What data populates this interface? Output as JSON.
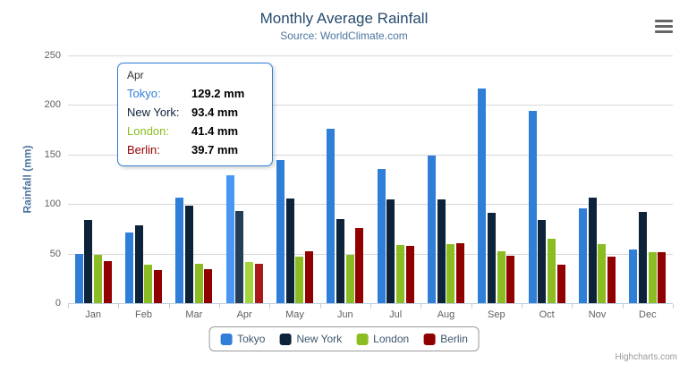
{
  "header": {
    "title": "Monthly Average Rainfall",
    "subtitle": "Source: WorldClimate.com"
  },
  "chart_data": {
    "type": "bar",
    "title": "Monthly Average Rainfall",
    "subtitle": "Source: WorldClimate.com",
    "xlabel": "",
    "ylabel": "Rainfall (mm)",
    "ylim": [
      0,
      250
    ],
    "ytick_step": 50,
    "grid": true,
    "legend_position": "bottom",
    "categories": [
      "Jan",
      "Feb",
      "Mar",
      "Apr",
      "May",
      "Jun",
      "Jul",
      "Aug",
      "Sep",
      "Oct",
      "Nov",
      "Dec"
    ],
    "series": [
      {
        "name": "Tokyo",
        "color": "#2f7ed8",
        "hover_color": "#4a97f2",
        "values": [
          49.9,
          71.5,
          106.4,
          129.2,
          144.0,
          176.0,
          135.6,
          148.5,
          216.4,
          194.1,
          95.6,
          54.4
        ]
      },
      {
        "name": "New York",
        "color": "#0d233a",
        "hover_color": "#253e57",
        "values": [
          83.6,
          78.8,
          98.5,
          93.4,
          106.0,
          84.5,
          105.0,
          104.3,
          91.2,
          83.5,
          106.6,
          92.3
        ]
      },
      {
        "name": "London",
        "color": "#8bbc21",
        "hover_color": "#a3d63c",
        "values": [
          48.9,
          38.8,
          39.3,
          41.4,
          47.0,
          48.3,
          59.0,
          59.6,
          52.4,
          65.2,
          59.3,
          51.2
        ]
      },
      {
        "name": "Berlin",
        "color": "#910000",
        "hover_color": "#ab1a1a",
        "values": [
          42.4,
          33.2,
          34.5,
          39.7,
          52.6,
          75.5,
          57.4,
          60.4,
          47.6,
          39.1,
          46.8,
          51.1
        ]
      }
    ],
    "hovered_category": "Apr"
  },
  "tooltip": {
    "header": "Apr",
    "unit": "mm",
    "rows": [
      {
        "label": "Tokyo",
        "value": "129.2",
        "color": "#2f7ed8"
      },
      {
        "label": "New York",
        "value": "93.4",
        "color": "#0d233a"
      },
      {
        "label": "London",
        "value": "41.4",
        "color": "#8bbc21"
      },
      {
        "label": "Berlin",
        "value": "39.7",
        "color": "#910000"
      }
    ]
  },
  "legend": {
    "items": [
      {
        "label": "Tokyo",
        "color": "#2f7ed8"
      },
      {
        "label": "New York",
        "color": "#0d233a"
      },
      {
        "label": "London",
        "color": "#8bbc21"
      },
      {
        "label": "Berlin",
        "color": "#910000"
      }
    ]
  },
  "credits": "Highcharts.com"
}
